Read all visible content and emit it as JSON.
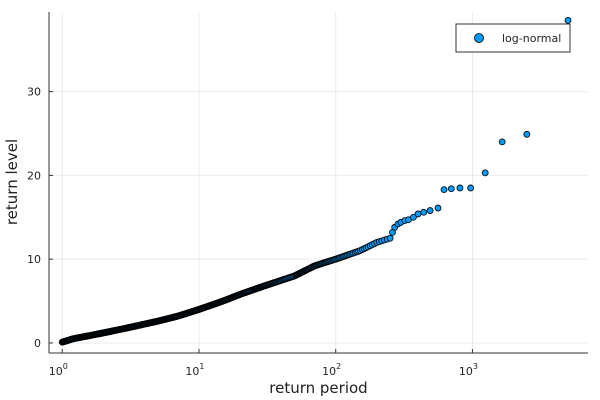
{
  "chart_data": {
    "type": "scatter",
    "title": "",
    "xlabel": "return period",
    "ylabel": "return level",
    "xscale": "log10",
    "xlim": [
      0.8,
      7000
    ],
    "ylim": [
      -1.2,
      39.5
    ],
    "x_ticks": [
      1,
      10,
      100,
      1000
    ],
    "x_tick_labels": [
      {
        "base": "10",
        "exp": "0"
      },
      {
        "base": "10",
        "exp": "1"
      },
      {
        "base": "10",
        "exp": "2"
      },
      {
        "base": "10",
        "exp": "3"
      }
    ],
    "y_ticks": [
      0,
      10,
      20,
      30
    ],
    "y_tick_labels": [
      "0",
      "10",
      "20",
      "30"
    ],
    "grid": true,
    "legend_position": "top-right",
    "series": [
      {
        "name": "log-normal",
        "color": "#009AFA",
        "curve_anchors": [
          [
            1.0,
            0.1
          ],
          [
            1.1,
            0.3
          ],
          [
            1.2,
            0.5
          ],
          [
            1.5,
            0.8
          ],
          [
            2,
            1.2
          ],
          [
            3,
            1.8
          ],
          [
            5,
            2.6
          ],
          [
            7,
            3.2
          ],
          [
            10,
            4.0
          ],
          [
            15,
            5.0
          ],
          [
            20,
            5.8
          ],
          [
            30,
            6.8
          ],
          [
            50,
            8.0
          ],
          [
            70,
            9.2
          ],
          [
            100,
            10.0
          ],
          [
            150,
            11.0
          ],
          [
            200,
            12.0
          ],
          [
            250,
            12.5
          ]
        ],
        "points": [
          [
            260,
            13.2
          ],
          [
            270,
            13.8
          ],
          [
            285,
            14.2
          ],
          [
            300,
            14.4
          ],
          [
            320,
            14.6
          ],
          [
            340,
            14.7
          ],
          [
            370,
            15.0
          ],
          [
            400,
            15.4
          ],
          [
            440,
            15.6
          ],
          [
            490,
            15.8
          ],
          [
            560,
            16.1
          ],
          [
            620,
            18.3
          ],
          [
            700,
            18.4
          ],
          [
            810,
            18.5
          ],
          [
            970,
            18.5
          ],
          [
            1240,
            20.3
          ],
          [
            1650,
            24.0
          ],
          [
            2500,
            24.9
          ],
          [
            5000,
            38.5
          ]
        ]
      }
    ]
  }
}
